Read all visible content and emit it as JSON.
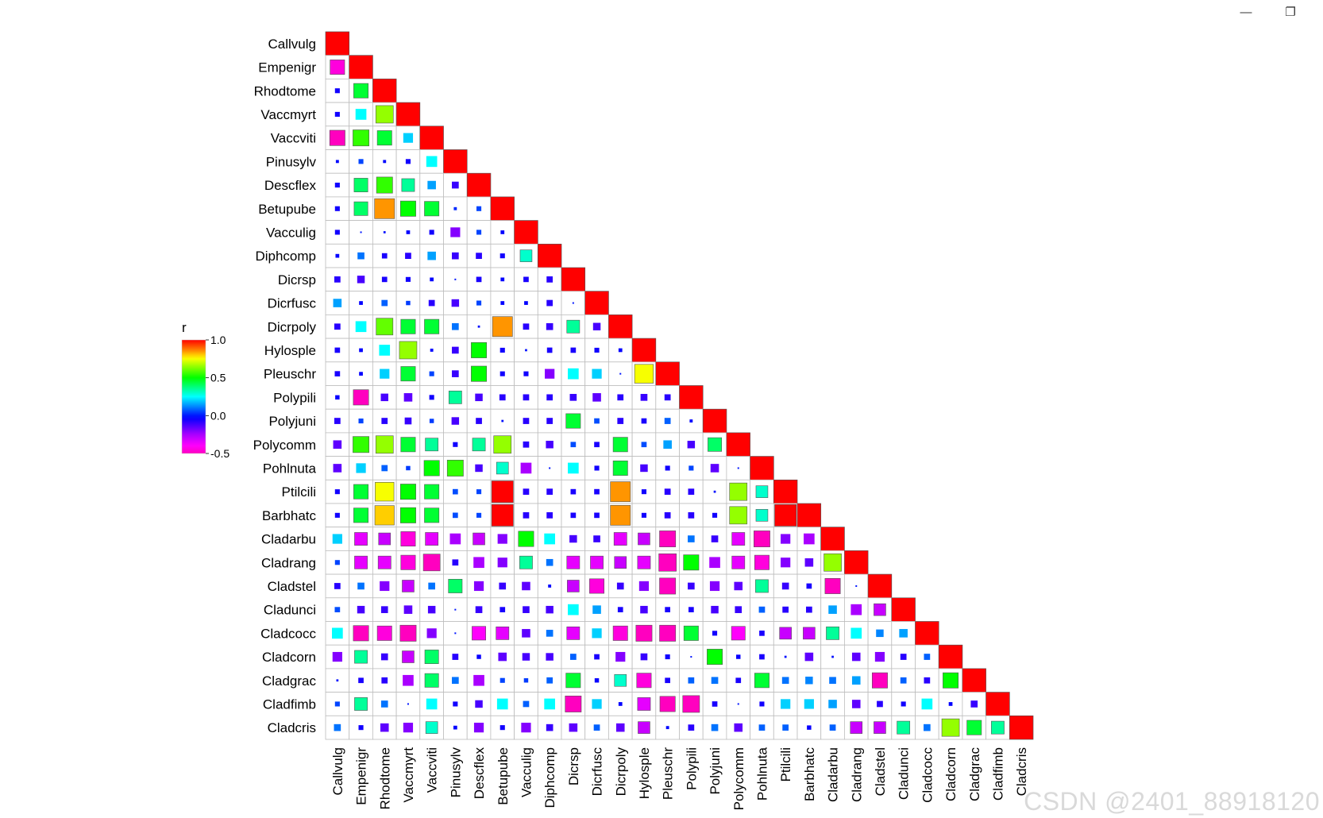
{
  "window": {
    "minimize_icon": "minimize-icon",
    "restore_icon": "restore-icon",
    "minimize_glyph": "—",
    "restore_glyph": "❐"
  },
  "watermark": "CSDN @2401_88918120",
  "chart_data": {
    "type": "heatmap",
    "style": "correlation lower-triangle, squares sized and colored by r",
    "variables": [
      "Callvulg",
      "Empenigr",
      "Rhodtome",
      "Vaccmyrt",
      "Vaccviti",
      "Pinusylv",
      "Descflex",
      "Betupube",
      "Vacculig",
      "Diphcomp",
      "Dicrsp",
      "Dicrfusc",
      "Dicrpoly",
      "Hylosple",
      "Pleuschr",
      "Polypili",
      "Polyjuni",
      "Polycomm",
      "Pohlnuta",
      "Ptilcili",
      "Barbhatc",
      "Cladarbu",
      "Cladrang",
      "Cladstel",
      "Cladunci",
      "Cladcocc",
      "Cladcorn",
      "Cladgrac",
      "Cladfimb",
      "Cladcris"
    ],
    "values": [
      [
        1.0
      ],
      [
        -0.45,
        1.0
      ],
      [
        -0.05,
        0.45,
        1.0
      ],
      [
        -0.05,
        0.25,
        0.65,
        1.0
      ],
      [
        -0.5,
        0.55,
        0.45,
        0.2,
        1.0
      ],
      [
        -0.02,
        0.05,
        -0.02,
        -0.05,
        0.25,
        1.0
      ],
      [
        -0.05,
        0.4,
        0.55,
        0.35,
        0.15,
        -0.1,
        1.0
      ],
      [
        -0.05,
        0.4,
        0.85,
        0.5,
        0.45,
        0.02,
        0.05,
        1.0
      ],
      [
        -0.05,
        0.0,
        -0.01,
        -0.03,
        -0.05,
        -0.2,
        0.05,
        -0.03,
        1.0
      ],
      [
        -0.03,
        0.1,
        -0.06,
        -0.08,
        0.15,
        -0.1,
        -0.08,
        -0.05,
        0.3,
        1.0
      ],
      [
        -0.08,
        -0.12,
        -0.06,
        -0.05,
        -0.03,
        0.0,
        -0.06,
        -0.03,
        -0.06,
        -0.08,
        1.0
      ],
      [
        0.15,
        -0.03,
        0.08,
        0.04,
        -0.08,
        -0.12,
        0.05,
        -0.03,
        -0.03,
        -0.08,
        0.0,
        1.0
      ],
      [
        -0.08,
        0.25,
        0.6,
        0.45,
        0.45,
        0.1,
        -0.01,
        0.85,
        -0.08,
        -0.1,
        0.35,
        -0.12,
        1.0
      ],
      [
        -0.06,
        -0.03,
        0.25,
        0.65,
        -0.02,
        -0.1,
        0.5,
        -0.05,
        -0.01,
        -0.06,
        -0.06,
        -0.05,
        -0.03,
        1.0
      ],
      [
        -0.06,
        -0.03,
        0.2,
        0.45,
        0.05,
        -0.1,
        0.5,
        -0.05,
        -0.05,
        -0.2,
        0.25,
        0.2,
        0.0,
        0.75,
        1.0
      ],
      [
        -0.04,
        -0.5,
        -0.12,
        -0.15,
        -0.05,
        0.35,
        -0.12,
        -0.08,
        -0.08,
        -0.08,
        -0.1,
        -0.15,
        -0.08,
        -0.1,
        -0.08,
        1.0
      ],
      [
        -0.08,
        0.05,
        -0.08,
        -0.1,
        0.04,
        -0.12,
        -0.08,
        -0.01,
        -0.08,
        -0.08,
        0.45,
        0.06,
        -0.08,
        -0.06,
        0.08,
        -0.02,
        1.0
      ],
      [
        -0.15,
        0.55,
        0.65,
        0.45,
        0.35,
        -0.05,
        0.35,
        0.65,
        -0.08,
        -0.12,
        0.06,
        -0.06,
        0.45,
        0.06,
        0.15,
        -0.12,
        0.4,
        1.0
      ],
      [
        -0.15,
        0.2,
        0.08,
        0.04,
        0.5,
        0.55,
        -0.12,
        0.3,
        -0.25,
        0.0,
        0.25,
        -0.05,
        0.45,
        -0.12,
        -0.05,
        0.05,
        -0.15,
        0.0,
        1.0
      ],
      [
        -0.05,
        0.45,
        0.75,
        0.5,
        0.45,
        0.06,
        0.05,
        1.0,
        -0.08,
        -0.08,
        -0.06,
        -0.06,
        0.85,
        -0.05,
        -0.08,
        -0.08,
        -0.01,
        0.65,
        0.3,
        1.0
      ],
      [
        -0.05,
        0.45,
        0.8,
        0.5,
        0.45,
        0.06,
        0.05,
        1.0,
        -0.08,
        -0.08,
        -0.06,
        -0.06,
        0.85,
        -0.05,
        -0.08,
        -0.08,
        -0.05,
        0.65,
        0.3,
        1.0,
        1.0
      ],
      [
        0.2,
        -0.35,
        -0.3,
        -0.45,
        -0.35,
        -0.25,
        -0.3,
        -0.2,
        0.5,
        0.25,
        -0.12,
        -0.1,
        -0.35,
        -0.3,
        -0.55,
        0.1,
        -0.1,
        -0.35,
        -0.55,
        -0.2,
        -0.25,
        1.0
      ],
      [
        0.05,
        -0.35,
        -0.35,
        -0.45,
        -0.6,
        -0.08,
        -0.25,
        -0.2,
        0.35,
        0.1,
        -0.35,
        -0.35,
        -0.3,
        -0.35,
        -0.65,
        0.5,
        -0.25,
        -0.35,
        -0.45,
        -0.2,
        -0.15,
        0.65,
        1.0
      ],
      [
        -0.08,
        0.1,
        -0.2,
        -0.3,
        0.1,
        0.4,
        -0.2,
        -0.1,
        -0.15,
        -0.02,
        -0.3,
        -0.45,
        -0.1,
        -0.2,
        -0.55,
        -0.1,
        -0.2,
        -0.15,
        0.35,
        -0.1,
        -0.06,
        -0.5,
        0.0,
        1.0
      ],
      [
        0.06,
        -0.12,
        -0.1,
        -0.15,
        -0.12,
        0.0,
        -0.1,
        -0.06,
        -0.1,
        -0.12,
        0.25,
        0.15,
        -0.06,
        -0.12,
        -0.06,
        -0.06,
        -0.12,
        -0.1,
        0.08,
        -0.08,
        -0.08,
        0.15,
        -0.25,
        -0.3,
        1.0
      ],
      [
        0.25,
        -0.5,
        -0.45,
        -0.55,
        -0.2,
        0.0,
        -0.4,
        -0.35,
        -0.15,
        0.1,
        -0.35,
        0.2,
        -0.45,
        -0.55,
        -0.55,
        0.45,
        -0.05,
        -0.4,
        -0.06,
        -0.3,
        -0.3,
        0.35,
        0.25,
        0.12,
        0.15,
        1.0
      ],
      [
        -0.2,
        0.35,
        -0.1,
        -0.3,
        0.4,
        -0.08,
        -0.04,
        -0.15,
        -0.12,
        -0.12,
        0.08,
        -0.06,
        -0.2,
        -0.1,
        -0.05,
        0.0,
        0.5,
        -0.04,
        -0.06,
        -0.01,
        -0.15,
        -0.01,
        -0.15,
        -0.2,
        -0.08,
        0.08,
        1.0
      ],
      [
        -0.01,
        -0.06,
        -0.08,
        -0.25,
        0.4,
        0.1,
        -0.25,
        0.05,
        0.04,
        0.08,
        0.45,
        -0.04,
        0.3,
        -0.45,
        -0.06,
        0.08,
        0.1,
        -0.06,
        0.45,
        0.1,
        0.12,
        0.1,
        0.15,
        -0.5,
        0.08,
        -0.08,
        0.5,
        1.0
      ],
      [
        0.05,
        0.35,
        0.1,
        0.0,
        0.25,
        -0.05,
        -0.12,
        0.25,
        0.08,
        0.25,
        -0.55,
        0.2,
        -0.03,
        -0.35,
        -0.5,
        -0.6,
        -0.06,
        0.0,
        -0.05,
        0.2,
        0.2,
        0.15,
        -0.15,
        -0.08,
        -0.05,
        0.25,
        -0.03,
        -0.1,
        1.0
      ],
      [
        0.1,
        -0.05,
        -0.15,
        -0.2,
        0.3,
        -0.03,
        -0.2,
        -0.05,
        -0.2,
        -0.1,
        -0.15,
        0.08,
        -0.15,
        -0.3,
        -0.02,
        -0.08,
        0.1,
        -0.15,
        0.08,
        0.08,
        -0.04,
        0.08,
        -0.3,
        -0.3,
        0.35,
        0.1,
        0.65,
        0.45,
        0.35,
        1.0
      ]
    ],
    "colorbar": {
      "title": "r",
      "min": -0.5,
      "max": 1.0,
      "ticks": [
        "1.0",
        "0.5",
        "0.0",
        "-0.5"
      ]
    }
  }
}
